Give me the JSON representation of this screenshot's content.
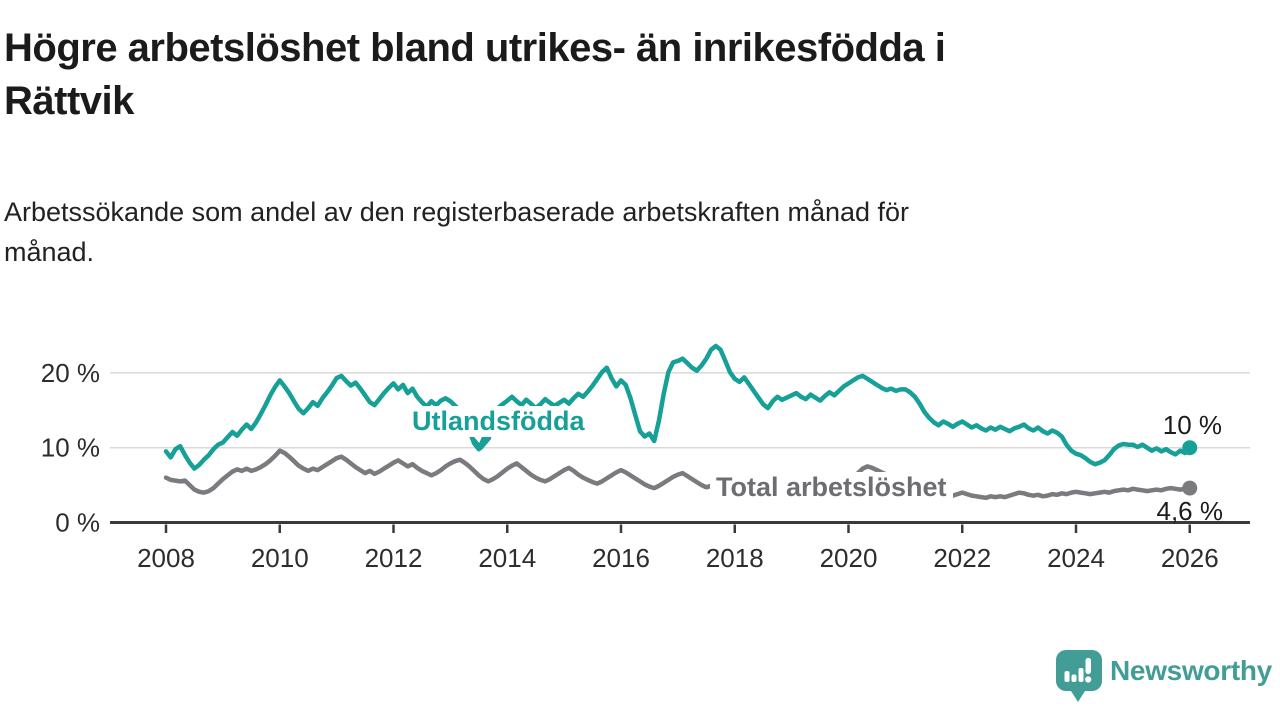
{
  "header": {
    "title_lines": [
      "Högre arbetslöshet bland utrikes- än inrikesfödda i",
      "Rättvik"
    ],
    "subtitle_lines": [
      "Arbetssökande som andel av den registerbaserade arbetskraften månad för",
      "månad."
    ]
  },
  "chart_data": {
    "type": "line",
    "title": "Högre arbetslöshet bland utrikes- än inrikesfödda i Rättvik",
    "xlabel": "",
    "ylabel": "Arbetssökande som andel av den registerbaserade arbetskraften",
    "x_unit": "månad",
    "x_start_year": 2008,
    "x_end_year": 2026,
    "ylim": [
      0,
      25
    ],
    "grid": "horizontal",
    "y_ticks": [
      {
        "value": 0,
        "label": "0 %"
      },
      {
        "value": 10,
        "label": "10 %"
      },
      {
        "value": 20,
        "label": "20 %"
      }
    ],
    "x_ticks": [
      {
        "year": 2008,
        "label": "2008"
      },
      {
        "year": 2010,
        "label": "2010"
      },
      {
        "year": 2012,
        "label": "2012"
      },
      {
        "year": 2014,
        "label": "2014"
      },
      {
        "year": 2016,
        "label": "2016"
      },
      {
        "year": 2018,
        "label": "2018"
      },
      {
        "year": 2020,
        "label": "2020"
      },
      {
        "year": 2022,
        "label": "2022"
      },
      {
        "year": 2024,
        "label": "2024"
      },
      {
        "year": 2026,
        "label": "2026"
      }
    ],
    "series": [
      {
        "name": "Utlandsfödda",
        "color": "#16a097",
        "end_label": "10 %",
        "end_value": 10.0,
        "values": [
          9.5,
          8.7,
          9.8,
          10.2,
          9.0,
          8.0,
          7.2,
          7.7,
          8.4,
          9.0,
          9.8,
          10.4,
          10.7,
          11.4,
          12.1,
          11.6,
          12.4,
          13.1,
          12.5,
          13.4,
          14.5,
          15.7,
          17.0,
          18.1,
          19.0,
          18.2,
          17.3,
          16.2,
          15.2,
          14.6,
          15.3,
          16.1,
          15.6,
          16.6,
          17.4,
          18.3,
          19.3,
          19.6,
          18.9,
          18.3,
          18.7,
          17.9,
          17.0,
          16.1,
          15.7,
          16.5,
          17.3,
          18.0,
          18.6,
          17.8,
          18.4,
          17.3,
          17.9,
          16.8,
          16.1,
          15.5,
          16.2,
          15.7,
          16.3,
          16.6,
          16.2,
          15.6,
          15.0,
          14.1,
          12.4,
          10.6,
          9.8,
          11.2,
          13.0,
          14.4,
          15.3,
          15.8,
          16.3,
          16.8,
          16.2,
          15.7,
          16.4,
          15.9,
          15.3,
          15.8,
          16.5,
          16.0,
          15.6,
          16.0,
          16.4,
          15.9,
          16.6,
          17.2,
          16.8,
          17.5,
          18.3,
          19.2,
          20.1,
          20.7,
          19.3,
          18.2,
          19.0,
          18.4,
          16.6,
          14.4,
          12.2,
          11.5,
          11.9,
          10.9,
          13.6,
          17.2,
          20.1,
          21.4,
          21.6,
          21.9,
          21.3,
          20.7,
          20.3,
          21.0,
          21.9,
          23.1,
          23.6,
          23.1,
          21.6,
          20.1,
          19.2,
          18.8,
          19.4,
          18.5,
          17.6,
          16.7,
          15.8,
          15.3,
          16.2,
          16.8,
          16.4,
          16.7,
          17.0,
          17.3,
          16.8,
          16.5,
          17.1,
          16.7,
          16.3,
          16.9,
          17.4,
          17.0,
          17.6,
          18.2,
          18.6,
          19.0,
          19.4,
          19.6,
          19.2,
          18.8,
          18.4,
          18.0,
          17.7,
          17.9,
          17.6,
          17.8,
          17.8,
          17.4,
          16.8,
          15.9,
          14.8,
          14.0,
          13.4,
          13.0,
          13.5,
          13.2,
          12.8,
          13.2,
          13.5,
          13.1,
          12.7,
          13.0,
          12.6,
          12.3,
          12.7,
          12.4,
          12.8,
          12.5,
          12.2,
          12.6,
          12.8,
          13.1,
          12.6,
          12.3,
          12.7,
          12.2,
          11.9,
          12.3,
          12.0,
          11.5,
          10.4,
          9.6,
          9.2,
          9.0,
          8.6,
          8.1,
          7.8,
          8.0,
          8.3,
          9.0,
          9.8,
          10.3,
          10.5,
          10.4,
          10.4,
          10.1,
          10.4,
          10.0,
          9.6,
          9.9,
          9.5,
          9.8,
          9.4,
          9.1,
          9.6,
          9.3,
          10.0
        ]
      },
      {
        "name": "Total arbetslöshet",
        "color": "#7b7a7e",
        "end_label": "4,6 %",
        "end_value": 4.6,
        "values": [
          6.0,
          5.7,
          5.6,
          5.5,
          5.6,
          5.0,
          4.4,
          4.1,
          4.0,
          4.2,
          4.6,
          5.2,
          5.8,
          6.3,
          6.8,
          7.1,
          6.9,
          7.2,
          6.9,
          7.1,
          7.4,
          7.8,
          8.3,
          8.9,
          9.6,
          9.3,
          8.8,
          8.2,
          7.6,
          7.2,
          6.9,
          7.2,
          7.0,
          7.4,
          7.8,
          8.2,
          8.6,
          8.8,
          8.4,
          7.9,
          7.4,
          7.0,
          6.6,
          6.9,
          6.5,
          6.8,
          7.2,
          7.6,
          8.0,
          8.3,
          7.9,
          7.5,
          7.8,
          7.3,
          6.9,
          6.6,
          6.3,
          6.6,
          7.0,
          7.5,
          7.9,
          8.2,
          8.4,
          8.0,
          7.5,
          6.9,
          6.3,
          5.8,
          5.5,
          5.8,
          6.2,
          6.7,
          7.2,
          7.6,
          7.9,
          7.4,
          6.9,
          6.4,
          6.0,
          5.7,
          5.5,
          5.8,
          6.2,
          6.6,
          7.0,
          7.3,
          6.9,
          6.4,
          6.0,
          5.7,
          5.4,
          5.2,
          5.5,
          5.9,
          6.3,
          6.7,
          7.0,
          6.7,
          6.3,
          5.9,
          5.5,
          5.1,
          4.8,
          4.6,
          4.9,
          5.3,
          5.7,
          6.1,
          6.4,
          6.6,
          6.2,
          5.8,
          5.4,
          5.0,
          4.7,
          4.9,
          5.2,
          5.6,
          5.9,
          6.2,
          6.4,
          6.1,
          5.8,
          5.4,
          5.0,
          4.7,
          4.4,
          4.6,
          4.9,
          5.2,
          5.5,
          5.8,
          6.0,
          5.7,
          5.4,
          5.1,
          4.8,
          4.5,
          4.3,
          4.5,
          4.8,
          5.1,
          5.4,
          5.7,
          5.9,
          6.1,
          6.6,
          7.2,
          7.5,
          7.3,
          7.0,
          6.7,
          6.4,
          6.1,
          5.9,
          6.1,
          6.3,
          6.0,
          5.6,
          5.2,
          4.8,
          4.4,
          4.1,
          3.8,
          3.6,
          3.5,
          3.6,
          3.8,
          4.0,
          3.8,
          3.6,
          3.5,
          3.4,
          3.3,
          3.5,
          3.4,
          3.5,
          3.4,
          3.6,
          3.8,
          4.0,
          3.9,
          3.7,
          3.6,
          3.7,
          3.5,
          3.6,
          3.8,
          3.7,
          3.9,
          3.8,
          4.0,
          4.1,
          4.0,
          3.9,
          3.8,
          3.9,
          4.0,
          4.1,
          4.0,
          4.2,
          4.3,
          4.4,
          4.3,
          4.5,
          4.4,
          4.3,
          4.2,
          4.3,
          4.4,
          4.3,
          4.5,
          4.6,
          4.5,
          4.4,
          4.5,
          4.6
        ]
      }
    ]
  },
  "colors": {
    "accent_teal": "#16a097",
    "series_gray": "#7b7a7e",
    "gridline": "#d9d9d9",
    "axis": "#3a3a3a",
    "text": "#1b1b1b",
    "brand_teal": "#429d96"
  },
  "footer": {
    "brand": "Newsworthy"
  }
}
